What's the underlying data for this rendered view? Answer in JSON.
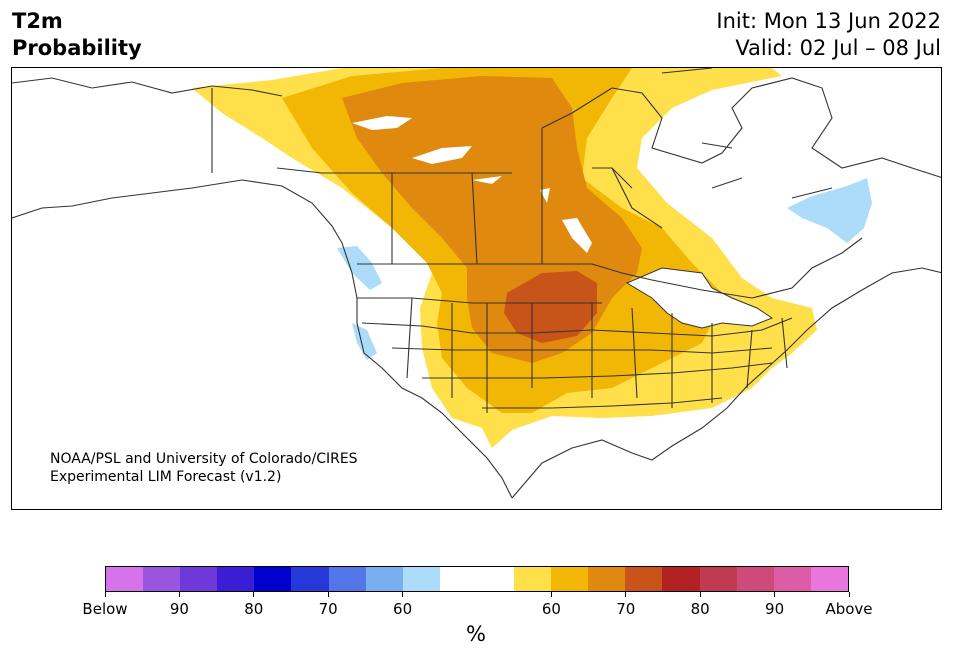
{
  "header": {
    "variable": "T2m",
    "product": "Probability",
    "init": "Init: Mon 13 Jun 2022",
    "valid": "Valid: 02 Jul – 08 Jul"
  },
  "credit": {
    "line1": "NOAA/PSL and University of Colorado/CIRES",
    "line2": "Experimental LIM Forecast (v1.2)"
  },
  "legend": {
    "unit": "%",
    "colors": [
      "#d473ea",
      "#9a55e0",
      "#6f38d8",
      "#3a1dd4",
      "#0000cd",
      "#2639d8",
      "#5275e8",
      "#79aff1",
      "#acdcfa",
      "#ffffff",
      "#ffffff",
      "#ffe04a",
      "#f2b705",
      "#df890f",
      "#c85419",
      "#b22222",
      "#c03a52",
      "#cc4b7a",
      "#dd5ca6",
      "#e876dc"
    ],
    "tick_labels": [
      "Below",
      "90",
      "80",
      "70",
      "60",
      "60",
      "70",
      "80",
      "90",
      "Above"
    ]
  },
  "map_colors": {
    "p60": "#ffe04a",
    "p65": "#f2b705",
    "p70": "#df890f",
    "p75": "#c85419",
    "below60": "#acdcfa",
    "lines": "#333333"
  }
}
